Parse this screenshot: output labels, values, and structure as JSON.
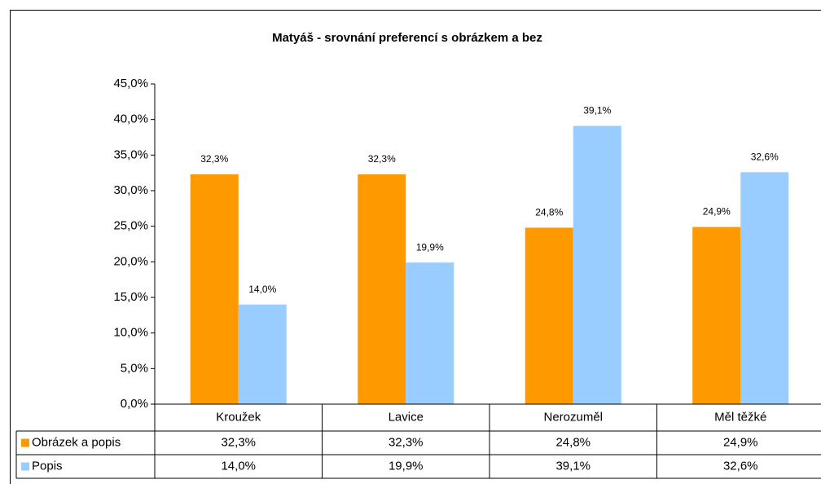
{
  "chart_data": {
    "type": "bar",
    "title": "Matyáš - srovnání preferencí s obrázkem a bez",
    "categories": [
      "Kroužek",
      "Lavice",
      "Nerozuměl",
      "Měl těžké"
    ],
    "series": [
      {
        "name": "Obrázek a popis",
        "color": "#ff9900",
        "values": [
          32.3,
          32.3,
          24.8,
          24.9
        ],
        "value_labels": [
          "32,3%",
          "32,3%",
          "24,8%",
          "24,9%"
        ]
      },
      {
        "name": "Popis",
        "color": "#99ccff",
        "values": [
          14.0,
          19.9,
          39.1,
          32.6
        ],
        "value_labels": [
          "14,0%",
          "19,9%",
          "39,1%",
          "32,6%"
        ]
      }
    ],
    "ylim": [
      0,
      45
    ],
    "yticks": [
      {
        "value": 0,
        "label": "0,0%"
      },
      {
        "value": 5,
        "label": "5,0%"
      },
      {
        "value": 10,
        "label": "10,0%"
      },
      {
        "value": 15,
        "label": "15,0%"
      },
      {
        "value": 20,
        "label": "20,0%"
      },
      {
        "value": 25,
        "label": "25,0%"
      },
      {
        "value": 30,
        "label": "30,0%"
      },
      {
        "value": 35,
        "label": "35,0%"
      },
      {
        "value": 40,
        "label": "40,0%"
      },
      {
        "value": 45,
        "label": "45,0%"
      }
    ],
    "grid": false
  }
}
